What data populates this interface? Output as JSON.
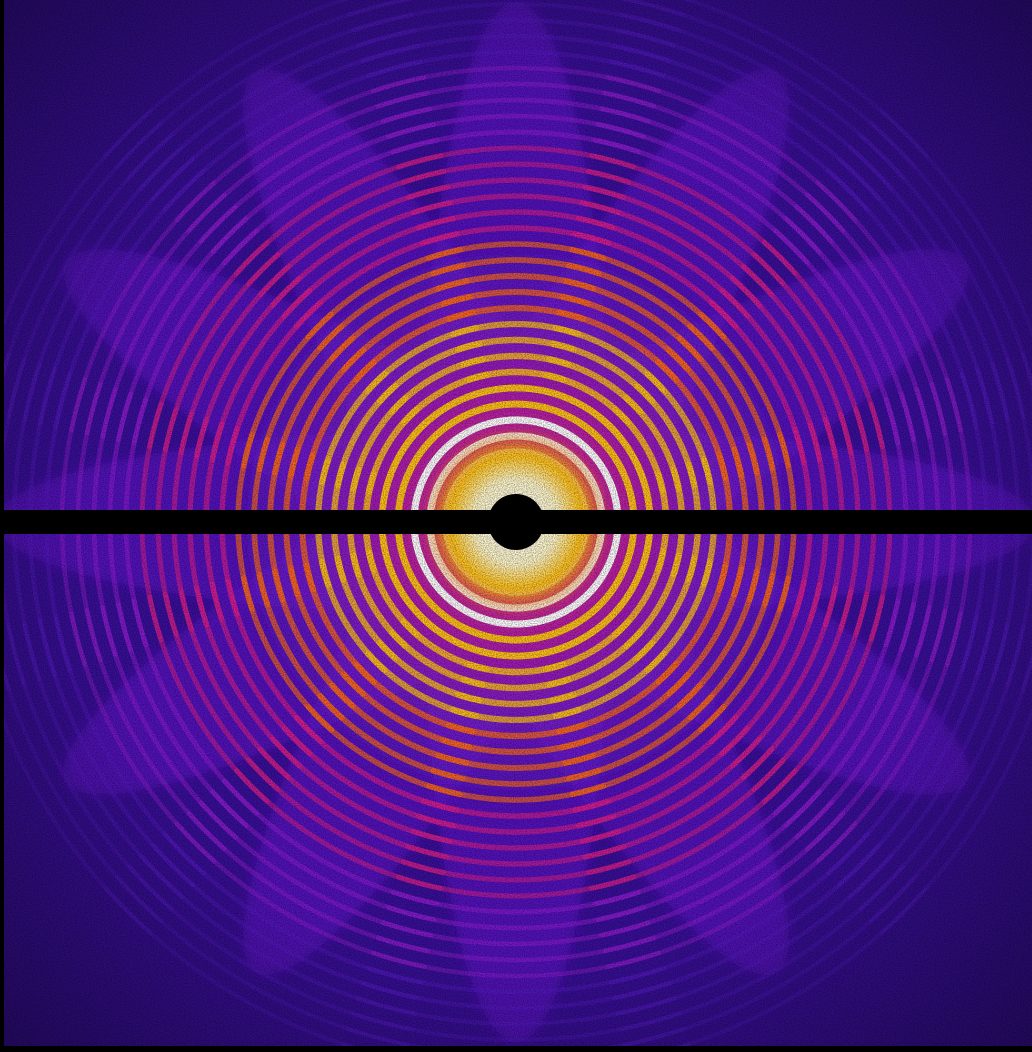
{
  "image": {
    "kind": "diffraction-pattern",
    "colormap": [
      "#000000",
      "#2a0a6e",
      "#5a1ccf",
      "#9b1fd9",
      "#e0208f",
      "#ff6a1a",
      "#ffc21a",
      "#ffffff"
    ],
    "background_color": "#3a0f9c",
    "beamstop_color": "#000000",
    "center_color": "#ffffff",
    "symmetry_arms": 6
  }
}
